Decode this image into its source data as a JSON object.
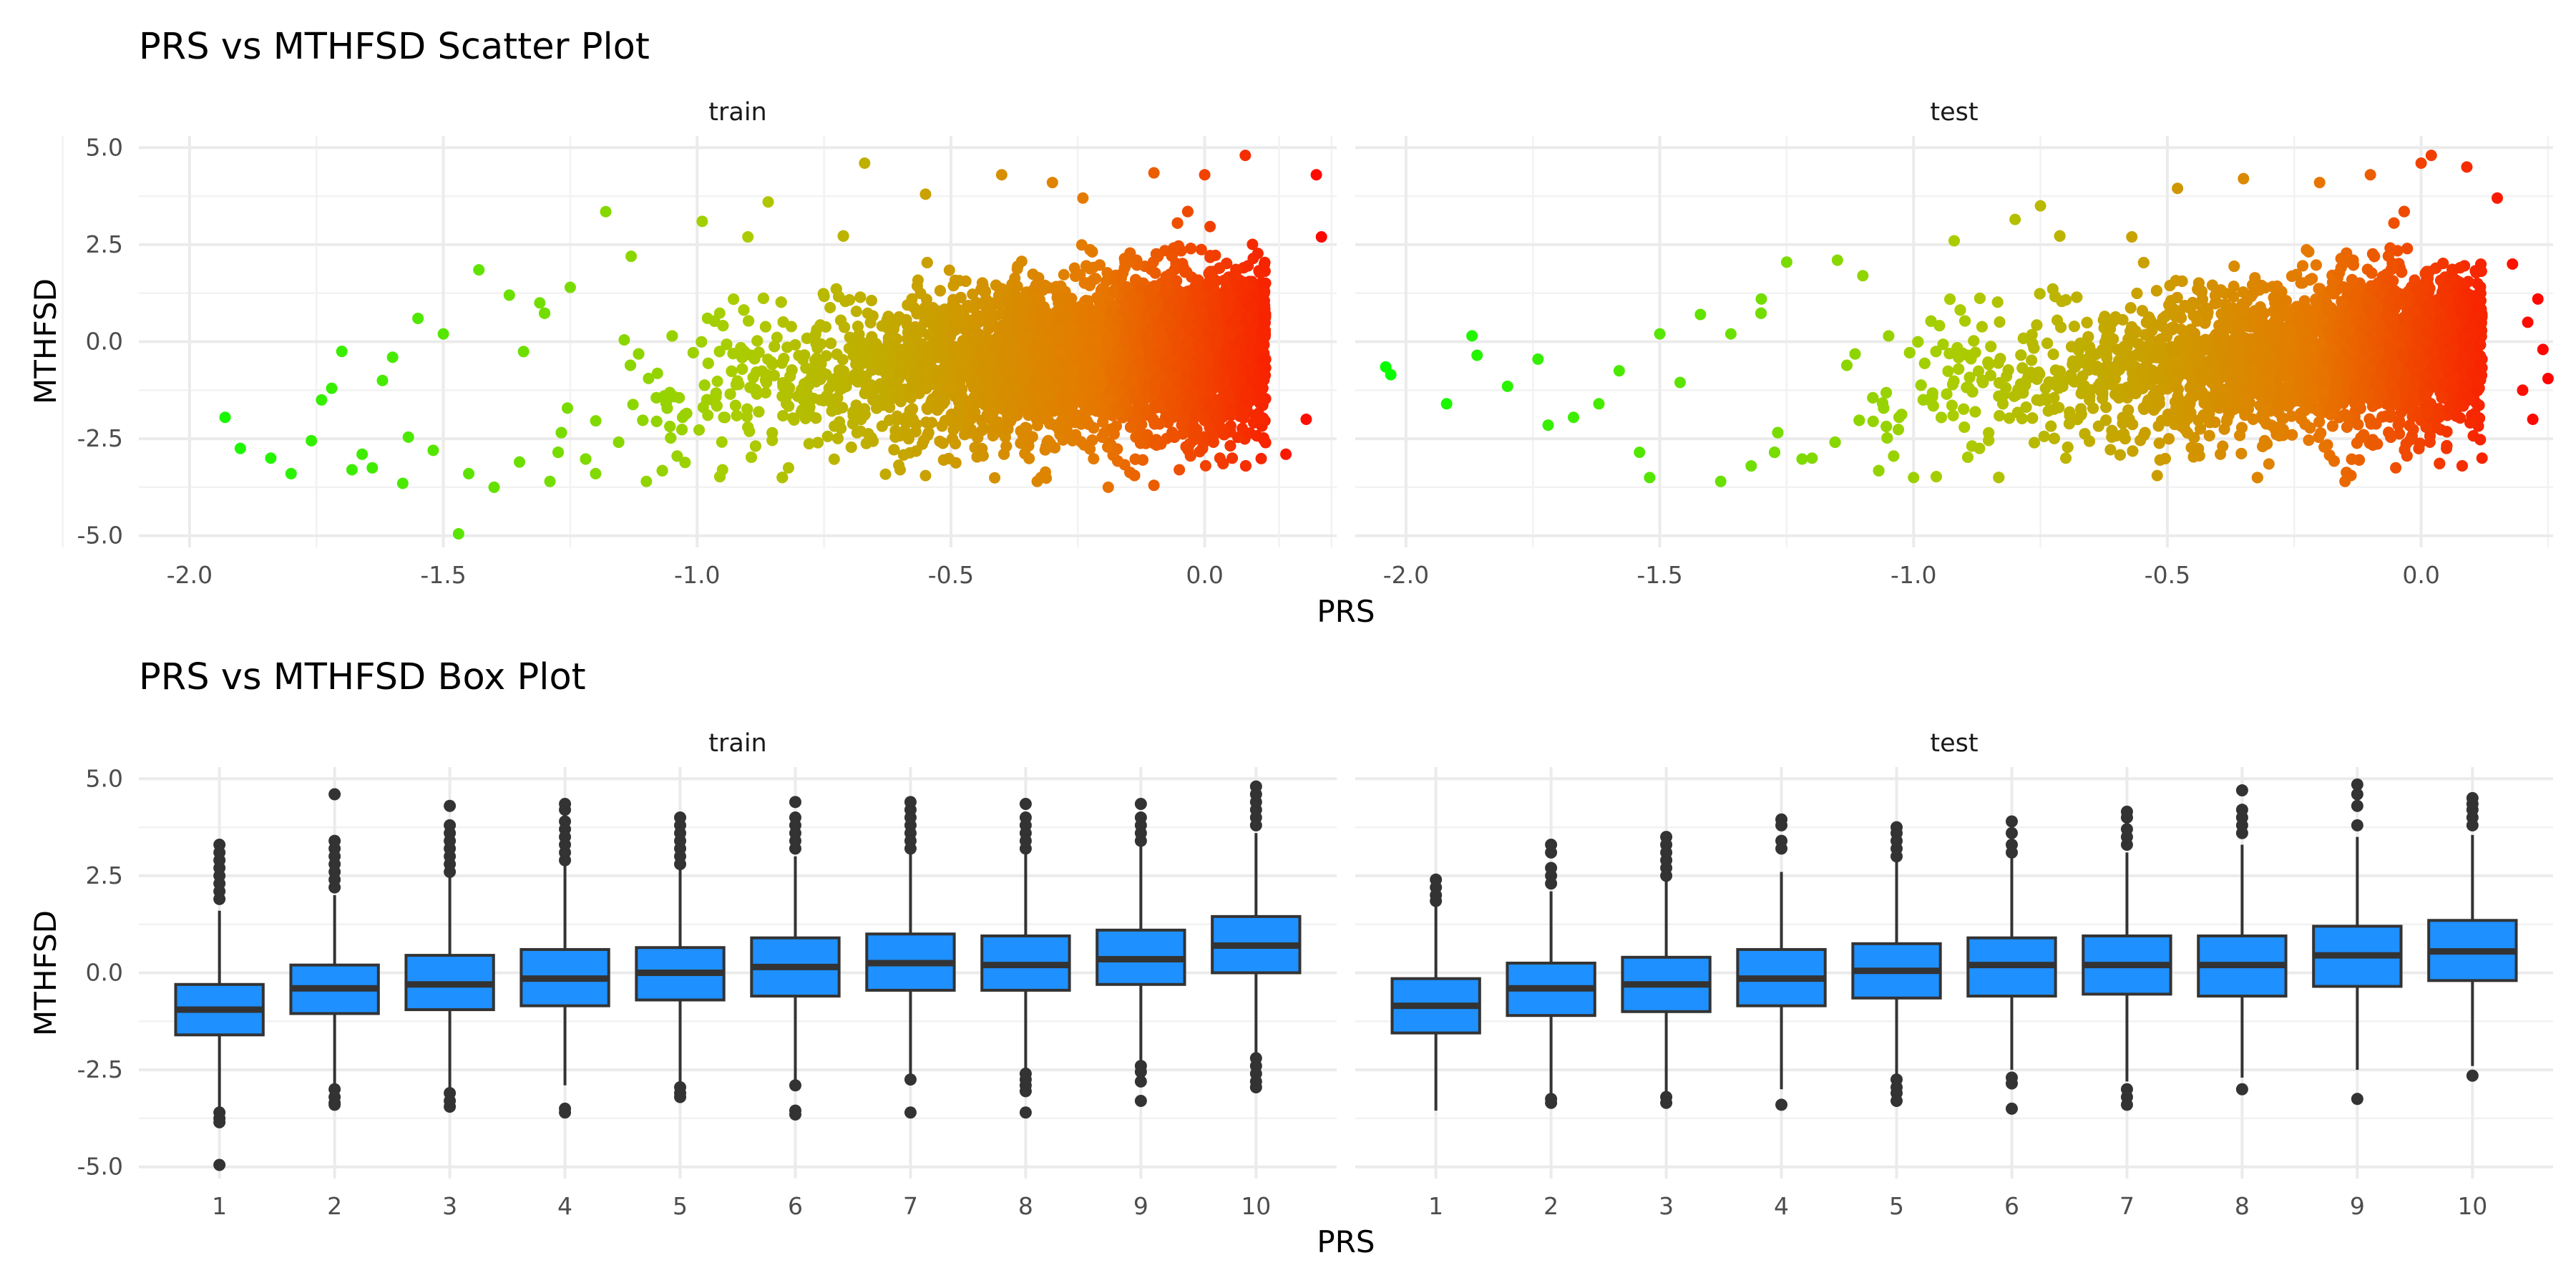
{
  "chart_data": [
    {
      "type": "scatter",
      "title": "PRS vs MTHFSD Scatter Plot",
      "xlabel": "PRS",
      "ylabel": "MTHFSD",
      "xlim": [
        -2.1,
        0.26
      ],
      "ylim": [
        -5.3,
        5.3
      ],
      "x_ticks": [
        -2.0,
        -1.5,
        -1.0,
        -0.5,
        0.0
      ],
      "x_tick_labels": [
        "-2.0",
        "-1.5",
        "-1.0",
        "-0.5",
        "0.0"
      ],
      "y_ticks": [
        -5.0,
        -2.5,
        0.0,
        2.5,
        5.0
      ],
      "y_tick_labels": [
        "-5.0",
        "-2.5",
        "0.0",
        "2.5",
        "5.0"
      ],
      "color_scale": {
        "low": "#00ff00",
        "high": "#ff0000",
        "mapped_to": "PRS"
      },
      "grid": true,
      "legend": "none",
      "facets": [
        {
          "name": "train",
          "points": [
            [
              -1.93,
              -1.95
            ],
            [
              -1.9,
              -2.75
            ],
            [
              -1.84,
              -3.0
            ],
            [
              -1.8,
              -3.4
            ],
            [
              -1.76,
              -2.55
            ],
            [
              -1.74,
              -1.5
            ],
            [
              -1.72,
              -1.2
            ],
            [
              -1.7,
              -0.25
            ],
            [
              -1.68,
              -3.3
            ],
            [
              -1.66,
              -2.9
            ],
            [
              -1.64,
              -3.25
            ],
            [
              -1.62,
              -1.0
            ],
            [
              -1.6,
              -0.4
            ],
            [
              -1.58,
              -3.65
            ],
            [
              -1.55,
              0.6
            ],
            [
              -1.52,
              -2.8
            ],
            [
              -1.5,
              0.2
            ],
            [
              -1.47,
              -4.95
            ],
            [
              -1.45,
              -3.4
            ],
            [
              -1.43,
              1.85
            ],
            [
              -1.4,
              -3.75
            ],
            [
              -1.37,
              1.2
            ],
            [
              -1.35,
              -3.1
            ],
            [
              -1.31,
              1.0
            ],
            [
              -1.29,
              -3.6
            ],
            [
              -1.25,
              1.4
            ],
            [
              -1.2,
              -3.4
            ],
            [
              -1.18,
              3.35
            ],
            [
              -1.13,
              2.2
            ],
            [
              -1.1,
              -3.6
            ],
            [
              -0.99,
              3.1
            ],
            [
              -0.95,
              -3.3
            ],
            [
              -0.9,
              2.7
            ],
            [
              -0.86,
              3.6
            ],
            [
              -0.82,
              -3.25
            ],
            [
              -0.67,
              4.6
            ],
            [
              -0.6,
              -3.3
            ],
            [
              -0.55,
              3.8
            ],
            [
              -0.55,
              -3.45
            ],
            [
              -0.4,
              4.3
            ],
            [
              -0.33,
              -3.6
            ],
            [
              -0.3,
              4.1
            ],
            [
              -0.24,
              3.7
            ],
            [
              -0.19,
              -3.75
            ],
            [
              -0.1,
              4.35
            ],
            [
              -0.1,
              -3.7
            ],
            [
              -0.05,
              -3.3
            ],
            [
              0.0,
              4.3
            ],
            [
              0.03,
              -3.0
            ],
            [
              0.08,
              4.8
            ],
            [
              0.12,
              -2.6
            ],
            [
              0.16,
              -2.9
            ],
            [
              0.2,
              -2.0
            ],
            [
              0.22,
              4.3
            ],
            [
              0.23,
              2.7
            ]
          ]
        },
        {
          "name": "test",
          "points": [
            [
              -2.04,
              -0.65
            ],
            [
              -2.03,
              -0.85
            ],
            [
              -1.92,
              -1.6
            ],
            [
              -1.87,
              0.15
            ],
            [
              -1.86,
              -0.35
            ],
            [
              -1.8,
              -1.15
            ],
            [
              -1.74,
              -0.45
            ],
            [
              -1.72,
              -2.15
            ],
            [
              -1.67,
              -1.95
            ],
            [
              -1.62,
              -1.6
            ],
            [
              -1.58,
              -0.75
            ],
            [
              -1.54,
              -2.85
            ],
            [
              -1.52,
              -3.5
            ],
            [
              -1.5,
              0.2
            ],
            [
              -1.46,
              -1.05
            ],
            [
              -1.42,
              0.7
            ],
            [
              -1.38,
              -3.6
            ],
            [
              -1.36,
              0.2
            ],
            [
              -1.32,
              -3.2
            ],
            [
              -1.3,
              1.1
            ],
            [
              -1.25,
              2.05
            ],
            [
              -1.2,
              -3.0
            ],
            [
              -1.15,
              2.1
            ],
            [
              -1.1,
              1.7
            ],
            [
              -1.0,
              -3.5
            ],
            [
              -0.92,
              2.6
            ],
            [
              -0.87,
              -2.75
            ],
            [
              -0.8,
              3.15
            ],
            [
              -0.75,
              3.5
            ],
            [
              -0.7,
              -3.0
            ],
            [
              -0.57,
              2.7
            ],
            [
              -0.52,
              -3.45
            ],
            [
              -0.48,
              3.95
            ],
            [
              -0.35,
              4.2
            ],
            [
              -0.3,
              -3.15
            ],
            [
              -0.2,
              4.1
            ],
            [
              -0.15,
              -3.6
            ],
            [
              -0.1,
              4.3
            ],
            [
              -0.05,
              -3.25
            ],
            [
              0.0,
              4.6
            ],
            [
              0.02,
              4.8
            ],
            [
              0.05,
              -2.75
            ],
            [
              0.09,
              4.5
            ],
            [
              0.12,
              -3.0
            ],
            [
              0.15,
              3.7
            ],
            [
              0.18,
              2.0
            ],
            [
              0.2,
              -1.25
            ],
            [
              0.21,
              0.5
            ],
            [
              0.22,
              -2.0
            ],
            [
              0.23,
              1.1
            ],
            [
              0.24,
              -0.2
            ],
            [
              0.25,
              -0.95
            ]
          ]
        }
      ]
    },
    {
      "type": "box",
      "title": "PRS vs MTHFSD Box Plot",
      "xlabel": "PRS",
      "ylabel": "MTHFSD",
      "categories": [
        "1",
        "2",
        "3",
        "4",
        "5",
        "6",
        "7",
        "8",
        "9",
        "10"
      ],
      "ylim": [
        -5.3,
        5.3
      ],
      "y_ticks": [
        -5.0,
        -2.5,
        0.0,
        2.5,
        5.0
      ],
      "y_tick_labels": [
        "-5.0",
        "-2.5",
        "0.0",
        "2.5",
        "5.0"
      ],
      "fill_color": "#1e90ff",
      "grid": true,
      "legend": "none",
      "facets": [
        {
          "name": "train",
          "boxes": [
            {
              "q1": -1.6,
              "median": -0.95,
              "q3": -0.3,
              "low": -3.5,
              "high": 1.6,
              "outliers": [
                3.3,
                3.1,
                2.9,
                2.7,
                2.5,
                2.3,
                2.1,
                1.9,
                -3.6,
                -3.75,
                -3.85,
                -4.95
              ]
            },
            {
              "q1": -1.05,
              "median": -0.4,
              "q3": 0.2,
              "low": -2.85,
              "high": 2.0,
              "outliers": [
                4.6,
                3.4,
                3.2,
                3.0,
                2.8,
                2.6,
                2.4,
                2.2,
                -3.0,
                -3.2,
                -3.35,
                -3.4
              ]
            },
            {
              "q1": -0.95,
              "median": -0.3,
              "q3": 0.45,
              "low": -3.0,
              "high": 2.45,
              "outliers": [
                4.3,
                3.8,
                3.6,
                3.4,
                3.2,
                3.0,
                2.8,
                2.6,
                -3.1,
                -3.3,
                -3.45
              ]
            },
            {
              "q1": -0.85,
              "median": -0.15,
              "q3": 0.6,
              "low": -2.9,
              "high": 2.75,
              "outliers": [
                4.35,
                4.2,
                3.9,
                3.7,
                3.5,
                3.3,
                3.1,
                2.9,
                -3.5,
                -3.6
              ]
            },
            {
              "q1": -0.7,
              "median": 0.0,
              "q3": 0.65,
              "low": -2.8,
              "high": 2.65,
              "outliers": [
                4.0,
                3.8,
                3.6,
                3.4,
                3.2,
                3.0,
                2.8,
                -2.95,
                -3.1,
                -3.2
              ]
            },
            {
              "q1": -0.6,
              "median": 0.15,
              "q3": 0.9,
              "low": -2.8,
              "high": 3.0,
              "outliers": [
                4.4,
                4.0,
                3.8,
                3.6,
                3.4,
                3.2,
                -2.9,
                -3.55,
                -3.65
              ]
            },
            {
              "q1": -0.45,
              "median": 0.25,
              "q3": 1.0,
              "low": -2.6,
              "high": 3.05,
              "outliers": [
                4.4,
                4.2,
                4.0,
                3.8,
                3.6,
                3.4,
                3.2,
                -2.75,
                -3.6
              ]
            },
            {
              "q1": -0.45,
              "median": 0.2,
              "q3": 0.95,
              "low": -2.5,
              "high": 3.1,
              "outliers": [
                4.35,
                4.0,
                3.8,
                3.6,
                3.4,
                3.2,
                -2.6,
                -2.75,
                -2.9,
                -3.05,
                -3.6
              ]
            },
            {
              "q1": -0.3,
              "median": 0.35,
              "q3": 1.1,
              "low": -2.3,
              "high": 3.3,
              "outliers": [
                4.35,
                4.0,
                3.8,
                3.6,
                3.4,
                -2.4,
                -2.55,
                -2.8,
                -3.3
              ]
            },
            {
              "q1": 0.0,
              "median": 0.7,
              "q3": 1.45,
              "low": -2.1,
              "high": 3.6,
              "outliers": [
                4.8,
                4.6,
                4.4,
                4.2,
                4.0,
                3.8,
                -2.2,
                -2.4,
                -2.6,
                -2.8,
                -2.95
              ]
            }
          ]
        },
        {
          "name": "test",
          "boxes": [
            {
              "q1": -1.55,
              "median": -0.85,
              "q3": -0.15,
              "low": -3.55,
              "high": 1.75,
              "outliers": [
                2.4,
                2.2,
                2.0,
                1.85
              ]
            },
            {
              "q1": -1.1,
              "median": -0.4,
              "q3": 0.25,
              "low": -3.1,
              "high": 2.1,
              "outliers": [
                3.3,
                3.1,
                2.7,
                2.5,
                2.3,
                -3.25,
                -3.35
              ]
            },
            {
              "q1": -1.0,
              "median": -0.3,
              "q3": 0.4,
              "low": -3.1,
              "high": 2.4,
              "outliers": [
                3.5,
                3.3,
                3.1,
                2.9,
                2.7,
                2.5,
                -3.2,
                -3.35
              ]
            },
            {
              "q1": -0.85,
              "median": -0.15,
              "q3": 0.6,
              "low": -3.0,
              "high": 2.6,
              "outliers": [
                3.95,
                3.8,
                3.4,
                3.2,
                -3.4
              ]
            },
            {
              "q1": -0.65,
              "median": 0.05,
              "q3": 0.75,
              "low": -2.6,
              "high": 2.9,
              "outliers": [
                3.75,
                3.6,
                3.4,
                3.2,
                3.0,
                -2.75,
                -2.95,
                -3.1,
                -3.3
              ]
            },
            {
              "q1": -0.6,
              "median": 0.2,
              "q3": 0.9,
              "low": -2.5,
              "high": 3.0,
              "outliers": [
                3.9,
                3.6,
                3.3,
                3.1,
                -2.7,
                -2.85,
                -3.5
              ]
            },
            {
              "q1": -0.55,
              "median": 0.2,
              "q3": 0.95,
              "low": -2.8,
              "high": 3.1,
              "outliers": [
                4.15,
                4.0,
                3.7,
                3.5,
                3.3,
                -3.0,
                -3.2,
                -3.4
              ]
            },
            {
              "q1": -0.6,
              "median": 0.2,
              "q3": 0.95,
              "low": -2.7,
              "high": 3.3,
              "outliers": [
                4.7,
                4.2,
                4.0,
                3.8,
                3.6,
                -3.0
              ]
            },
            {
              "q1": -0.35,
              "median": 0.45,
              "q3": 1.2,
              "low": -2.5,
              "high": 3.5,
              "outliers": [
                4.85,
                4.6,
                4.3,
                3.8,
                -3.25
              ]
            },
            {
              "q1": -0.2,
              "median": 0.55,
              "q3": 1.35,
              "low": -2.4,
              "high": 3.55,
              "outliers": [
                4.5,
                4.35,
                4.2,
                4.0,
                3.8,
                -2.65
              ]
            }
          ]
        }
      ]
    }
  ]
}
